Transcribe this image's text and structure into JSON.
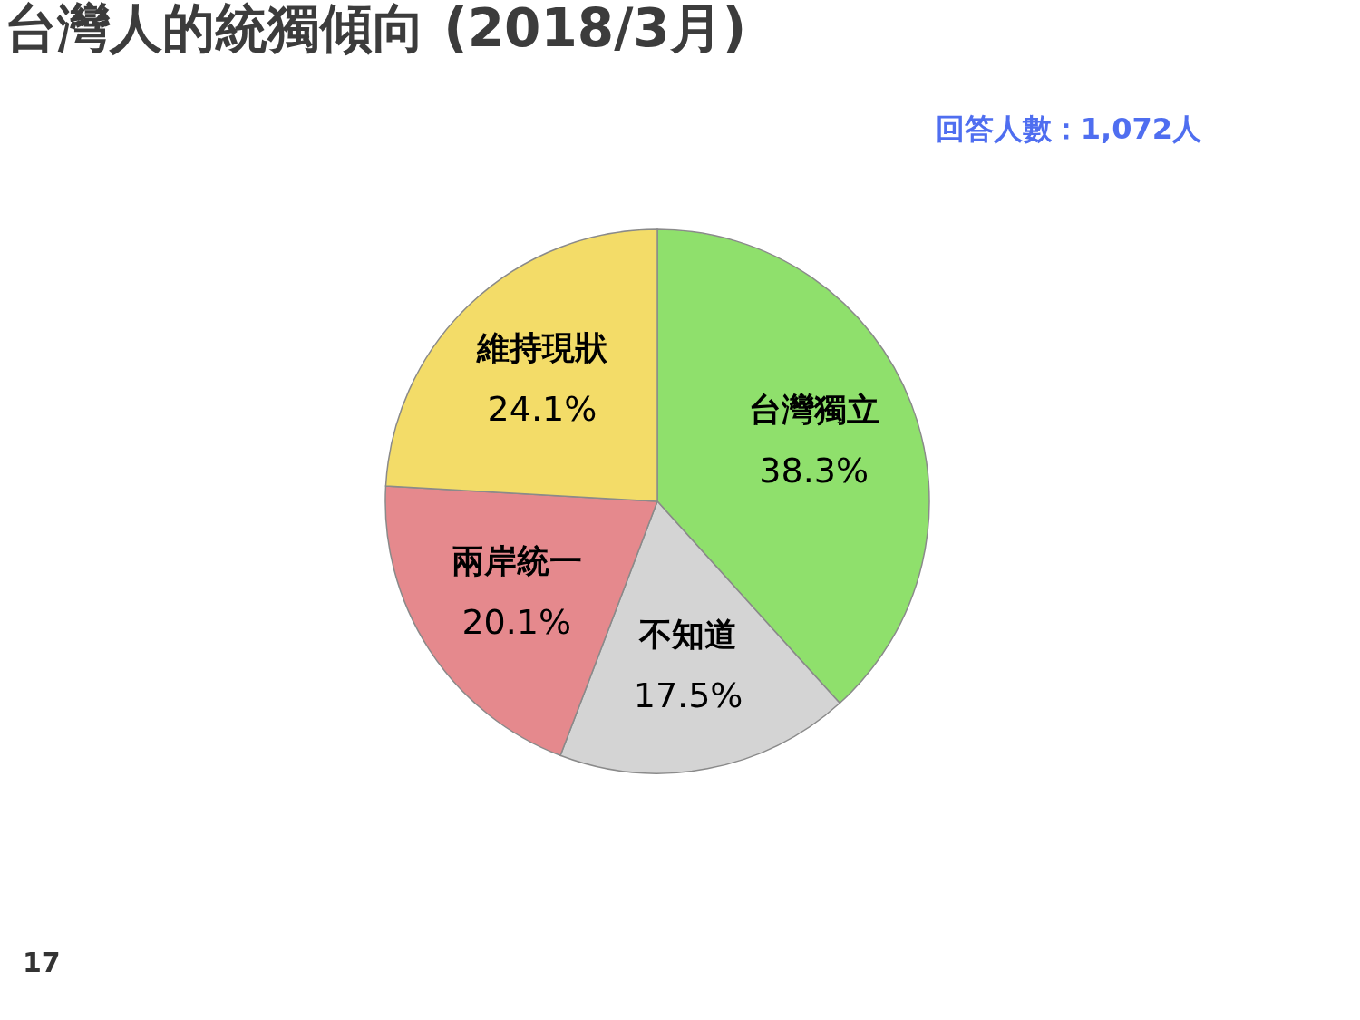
{
  "chart_data": {
    "type": "pie",
    "title": "台灣人的統獨傾向 (2018/3月)",
    "categories": [
      "台灣獨立",
      "不知道",
      "兩岸統一",
      "維持現狀"
    ],
    "values": [
      38.3,
      17.5,
      20.1,
      24.1
    ],
    "value_labels": [
      "38.3%",
      "17.5%",
      "20.1%",
      "24.1%"
    ],
    "colors": [
      "#8fe06c",
      "#d4d4d4",
      "#e5898d",
      "#f3dc68"
    ],
    "annotations": [
      "回答人數：1,072人",
      "17"
    ],
    "legend": false
  }
}
